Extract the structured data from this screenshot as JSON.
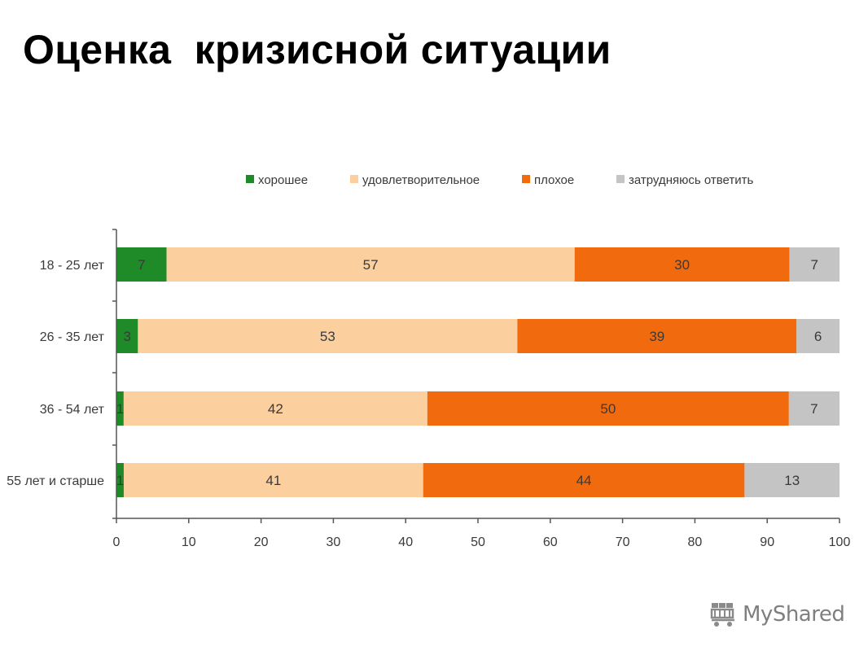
{
  "title": "Оценка  кризисной ситуации",
  "watermark": {
    "label": "MyShared",
    "icon": "cart-icon"
  },
  "colors": {
    "good": "#1e8a28",
    "satisfactory": "#fbcf9e",
    "bad": "#f26a0e",
    "hard_to_say": "#c4c4c4",
    "axis": "#555555",
    "text": "#3a3a3a"
  },
  "chart_data": {
    "type": "bar",
    "orientation": "horizontal",
    "stacked": true,
    "categories": [
      "18 - 25 лет",
      "26 - 35 лет",
      "36 - 54 лет",
      "55 лет и старше"
    ],
    "series": [
      {
        "name": "хорошее",
        "color": "#1e8a28",
        "values": [
          7,
          3,
          1,
          1
        ]
      },
      {
        "name": "удовлетворительное",
        "color": "#fbcf9e",
        "values": [
          57,
          53,
          42,
          41
        ]
      },
      {
        "name": "плохое",
        "color": "#f26a0e",
        "values": [
          30,
          39,
          50,
          44
        ]
      },
      {
        "name": "затрудняюсь ответить",
        "color": "#c4c4c4",
        "values": [
          7,
          6,
          7,
          13
        ]
      }
    ],
    "xlim": [
      0,
      100
    ],
    "xticks": [
      0,
      10,
      20,
      30,
      40,
      50,
      60,
      70,
      80,
      90,
      100
    ],
    "legend_position": "top",
    "grid": false
  }
}
